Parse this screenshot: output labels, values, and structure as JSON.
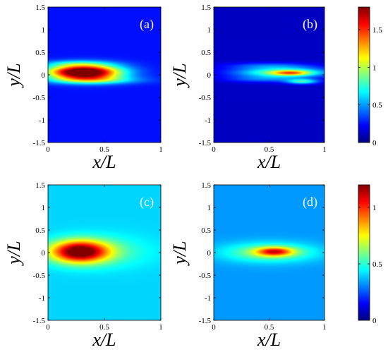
{
  "chart_data": [
    {
      "type": "heatmap",
      "panel_label": "(a)",
      "xlabel": "x/L",
      "ylabel": "y/L",
      "xlim": [
        0,
        1
      ],
      "ylim": [
        -1.5,
        1.5
      ],
      "x_ticks": [
        "0",
        "0.5",
        "1"
      ],
      "y_ticks": [
        "1.5",
        "1",
        "0.5",
        "0",
        "-0.5",
        "-1",
        "-1.5"
      ],
      "color_range": [
        0,
        1.8
      ],
      "background_value": 0.25,
      "hotspots": [
        {
          "x": 0.35,
          "y": 0.05,
          "sx": 0.22,
          "sy": 0.12,
          "amp": 1.5
        },
        {
          "x": 0.22,
          "y": 0.07,
          "sx": 0.2,
          "sy": 0.1,
          "amp": 0.5
        },
        {
          "x": 0.4,
          "y": -0.12,
          "sx": 0.28,
          "sy": 0.06,
          "amp": 0.45
        },
        {
          "x": 0.25,
          "y": 0.25,
          "sx": 0.22,
          "sy": 0.05,
          "amp": 0.25
        }
      ]
    },
    {
      "type": "heatmap",
      "panel_label": "(b)",
      "xlabel": "x/L",
      "ylabel": "y/L",
      "xlim": [
        0,
        1
      ],
      "ylim": [
        -1.5,
        1.5
      ],
      "x_ticks": [
        "0",
        "0.5",
        "1"
      ],
      "y_ticks": [
        "1.5",
        "1",
        "0.5",
        "0",
        "-0.5",
        "-1",
        "-1.5"
      ],
      "color_range": [
        0,
        1.8
      ],
      "background_value": 0.12,
      "hotspots": [
        {
          "x": 0.62,
          "y": 0.05,
          "sx": 0.3,
          "sy": 0.08,
          "amp": 0.75
        },
        {
          "x": 0.7,
          "y": 0.04,
          "sx": 0.12,
          "sy": 0.04,
          "amp": 0.65
        },
        {
          "x": 0.8,
          "y": -0.15,
          "sx": 0.1,
          "sy": 0.04,
          "amp": 0.6
        },
        {
          "x": 0.5,
          "y": 0.2,
          "sx": 0.28,
          "sy": 0.05,
          "amp": 0.25
        },
        {
          "x": 0.45,
          "y": -0.1,
          "sx": 0.25,
          "sy": 0.05,
          "amp": 0.25
        }
      ]
    },
    {
      "type": "heatmap",
      "panel_label": "(c)",
      "xlabel": "x/L",
      "ylabel": "y/L",
      "xlim": [
        0,
        1
      ],
      "ylim": [
        -1.5,
        1.5
      ],
      "x_ticks": [
        "0",
        "0.5",
        "1"
      ],
      "y_ticks": [
        "1.5",
        "1",
        "0.5",
        "0",
        "-0.5",
        "-1",
        "-1.5"
      ],
      "color_range": [
        0,
        1.2
      ],
      "background_value": 0.4,
      "hotspots": [
        {
          "x": 0.28,
          "y": 0.02,
          "sx": 0.18,
          "sy": 0.17,
          "amp": 0.85
        },
        {
          "x": 0.5,
          "y": 0.02,
          "sx": 0.3,
          "sy": 0.25,
          "amp": 0.12
        }
      ]
    },
    {
      "type": "heatmap",
      "panel_label": "(d)",
      "xlabel": "x/L",
      "ylabel": "y/L",
      "xlim": [
        0,
        1
      ],
      "ylim": [
        -1.5,
        1.5
      ],
      "x_ticks": [
        "0",
        "0.5",
        "1"
      ],
      "y_ticks": [
        "1.5",
        "1",
        "0.5",
        "0",
        "-0.5",
        "-1",
        "-1.5"
      ],
      "color_range": [
        0,
        1.2
      ],
      "background_value": 0.33,
      "hotspots": [
        {
          "x": 0.55,
          "y": 0.02,
          "sx": 0.12,
          "sy": 0.07,
          "amp": 0.52
        },
        {
          "x": 0.5,
          "y": 0.0,
          "sx": 0.3,
          "sy": 0.15,
          "amp": 0.28
        }
      ]
    }
  ],
  "colorbars": [
    {
      "range": [
        0,
        1.8
      ],
      "ticks": [
        {
          "value": 0,
          "label": "0"
        },
        {
          "value": 0.5,
          "label": "0.5"
        },
        {
          "value": 1,
          "label": "1"
        },
        {
          "value": 1.5,
          "label": "1.5"
        }
      ]
    },
    {
      "range": [
        0,
        1.2
      ],
      "ticks": [
        {
          "value": 0,
          "label": "0"
        },
        {
          "value": 0.5,
          "label": "0.5"
        },
        {
          "value": 1,
          "label": "1"
        }
      ]
    }
  ]
}
